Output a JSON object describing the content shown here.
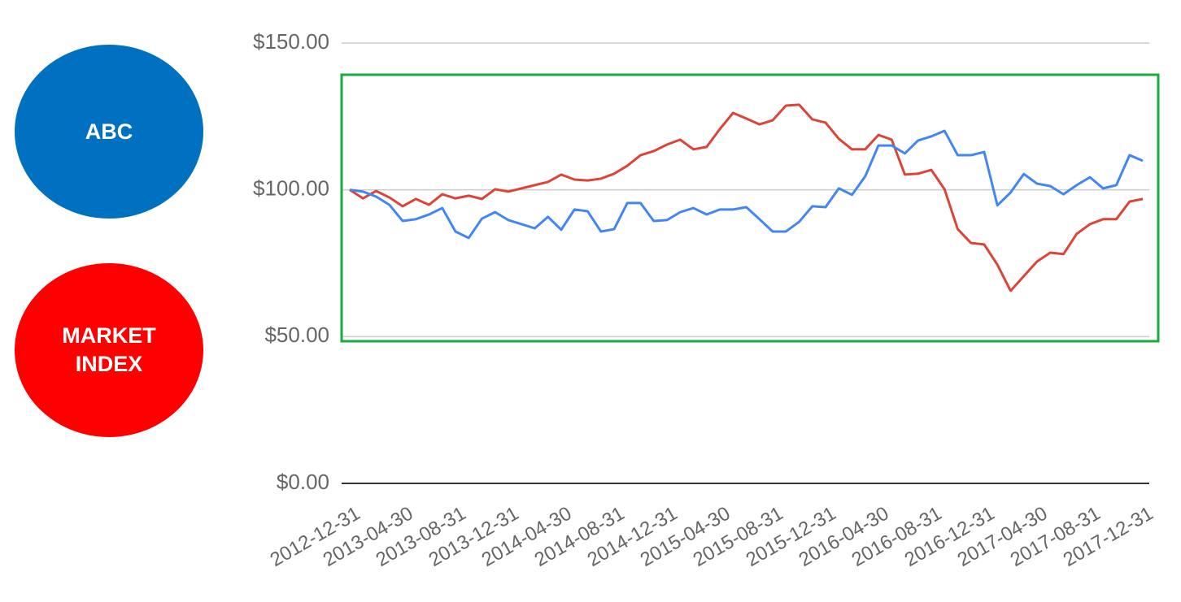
{
  "chart_data": {
    "type": "line",
    "categories": [
      "2012-12-31",
      null,
      null,
      null,
      "2013-04-30",
      null,
      null,
      null,
      "2013-08-31",
      null,
      null,
      null,
      "2013-12-31",
      null,
      null,
      null,
      "2014-04-30",
      null,
      null,
      null,
      "2014-08-31",
      null,
      null,
      null,
      "2014-12-31",
      null,
      null,
      null,
      "2015-04-30",
      null,
      null,
      null,
      "2015-08-31",
      null,
      null,
      null,
      "2015-12-31",
      null,
      null,
      null,
      "2016-04-30",
      null,
      null,
      null,
      "2016-08-31",
      null,
      null,
      null,
      "2016-12-31",
      null,
      null,
      null,
      "2017-04-30",
      null,
      null,
      null,
      "2017-08-31",
      null,
      null,
      null,
      "2017-12-31"
    ],
    "series": [
      {
        "name": "ABC",
        "color": "#4285f4",
        "legend_color": "#0070c0",
        "values": [
          100,
          99.4,
          97.7,
          94.9,
          89.4,
          90,
          91.6,
          93.8,
          85.8,
          83.6,
          90.2,
          92.4,
          89.7,
          88.3,
          86.9,
          90.8,
          86.4,
          93.3,
          92.7,
          85.8,
          86.6,
          95.5,
          95.5,
          89.4,
          89.7,
          92.4,
          93.8,
          91.6,
          93.3,
          93.3,
          94.1,
          90,
          85.8,
          85.8,
          89.1,
          94.4,
          94.1,
          100.5,
          98.3,
          104.6,
          115.1,
          115.1,
          112.4,
          116.8,
          118.2,
          120.1,
          111.8,
          111.8,
          112.9,
          94.7,
          99.1,
          105.4,
          102.1,
          101.3,
          98.5,
          101.6,
          104.3,
          100.5,
          101.6,
          111.8,
          109.9
        ]
      },
      {
        "name": "MARKET INDEX",
        "color": "#db4437",
        "legend_color": "#ff0000",
        "values": [
          100,
          97.1,
          99.6,
          97.4,
          94.4,
          96.9,
          94.9,
          98.5,
          97.1,
          98,
          96.9,
          100.2,
          99.4,
          100.5,
          101.6,
          102.7,
          105.2,
          103.5,
          103.2,
          103.8,
          105.5,
          108.2,
          111.8,
          113.2,
          115.4,
          117.1,
          113.8,
          114.6,
          120.7,
          126.2,
          124.3,
          122.3,
          123.7,
          128.7,
          129,
          124,
          122.9,
          117.4,
          113.8,
          113.8,
          118.7,
          117.1,
          105.2,
          105.5,
          106.8,
          100.2,
          86.6,
          81.9,
          81.4,
          74.5,
          65.6,
          70.6,
          75.6,
          78.6,
          78.1,
          85,
          88.3,
          90,
          90,
          96,
          96.9
        ]
      }
    ],
    "ylim": [
      0,
      150
    ],
    "yticks": [
      {
        "value": 0,
        "label": "$0.00"
      },
      {
        "value": 50,
        "label": "$50.00"
      },
      {
        "value": 100,
        "label": "$100.00"
      },
      {
        "value": 150,
        "label": "$150.00"
      }
    ],
    "grid": true
  }
}
